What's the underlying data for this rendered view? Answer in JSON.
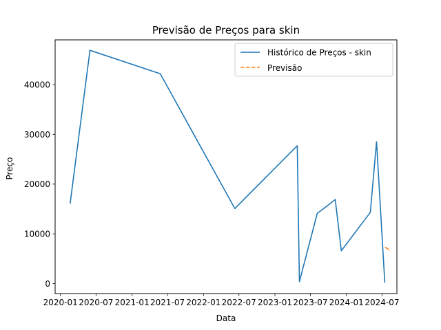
{
  "chart_data": {
    "type": "line",
    "title": "Previsão de Preços para skin",
    "xlabel": "Data",
    "ylabel": "Preço",
    "xlim": [
      "2019-12-05",
      "2024-09-15"
    ],
    "ylim": [
      -2000,
      49000
    ],
    "grid": false,
    "legend_position": "top-right",
    "x_ticks": [
      "2020-01",
      "2020-07",
      "2021-01",
      "2021-07",
      "2022-01",
      "2022-07",
      "2023-01",
      "2023-07",
      "2024-01",
      "2024-07"
    ],
    "x_tick_labels": [
      "2020-01",
      "2020-07",
      "2021-01",
      "2021-07",
      "2022-01",
      "2022-07",
      "2023-01",
      "2023-07",
      "2024-01",
      "2024-07"
    ],
    "y_ticks": [
      0,
      10000,
      20000,
      30000,
      40000
    ],
    "y_tick_labels": [
      "0",
      "10000",
      "20000",
      "30000",
      "40000"
    ],
    "series": [
      {
        "name": "Histórico de Preços - skin",
        "color": "#1f77b4",
        "style": "solid",
        "points": [
          {
            "x": "2020-02-20",
            "y": 16200
          },
          {
            "x": "2020-05-31",
            "y": 46900
          },
          {
            "x": "2021-05-25",
            "y": 42200
          },
          {
            "x": "2022-06-10",
            "y": 15100
          },
          {
            "x": "2023-04-25",
            "y": 27700
          },
          {
            "x": "2023-05-06",
            "y": 400
          },
          {
            "x": "2023-08-05",
            "y": 14100
          },
          {
            "x": "2023-11-05",
            "y": 16900
          },
          {
            "x": "2023-12-06",
            "y": 6600
          },
          {
            "x": "2024-05-02",
            "y": 14300
          },
          {
            "x": "2024-06-03",
            "y": 28500
          },
          {
            "x": "2024-07-15",
            "y": 300
          }
        ]
      },
      {
        "name": "Previsão",
        "color": "#ff7f0e",
        "style": "dashed",
        "points": [
          {
            "x": "2024-07-18",
            "y": 7300
          },
          {
            "x": "2024-08-10",
            "y": 6700
          }
        ]
      }
    ]
  }
}
